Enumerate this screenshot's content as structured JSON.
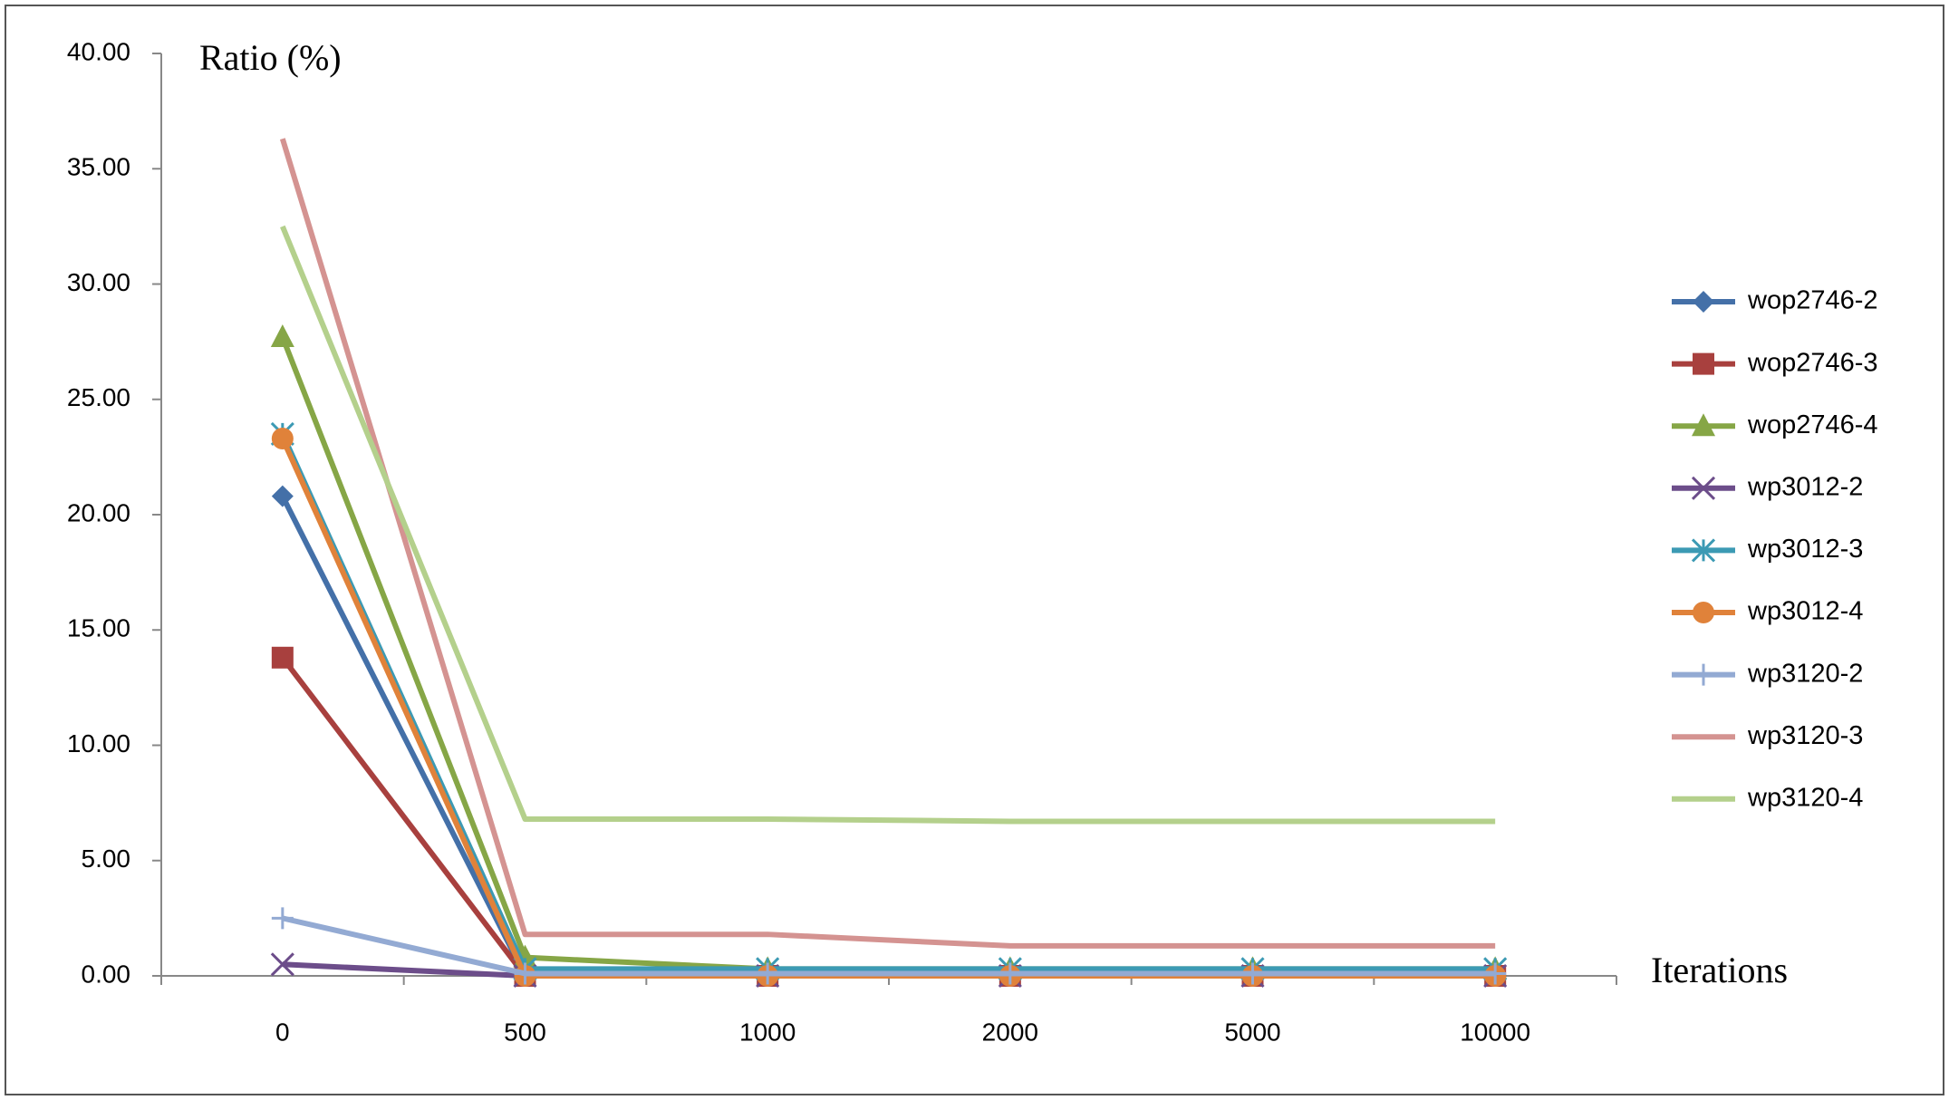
{
  "chart_data": {
    "type": "line",
    "y_label": "Ratio (%)",
    "x_label": "Iterations",
    "categories": [
      "0",
      "500",
      "1000",
      "2000",
      "5000",
      "10000"
    ],
    "ylim": [
      0,
      40
    ],
    "yticks": [
      {
        "value": 0,
        "label": "0.00"
      },
      {
        "value": 5,
        "label": "5.00"
      },
      {
        "value": 10,
        "label": "10.00"
      },
      {
        "value": 15,
        "label": "15.00"
      },
      {
        "value": 20,
        "label": "20.00"
      },
      {
        "value": 25,
        "label": "25.00"
      },
      {
        "value": 30,
        "label": "30.00"
      },
      {
        "value": 35,
        "label": "35.00"
      },
      {
        "value": 40,
        "label": "40.00"
      }
    ],
    "legend": "right",
    "series": [
      {
        "name": "wop2746-2",
        "color": "#4470a8",
        "marker": "diamond",
        "values": [
          20.8,
          0,
          0,
          0,
          0,
          0
        ]
      },
      {
        "name": "wop2746-3",
        "color": "#a8403e",
        "marker": "square",
        "values": [
          13.8,
          0,
          0,
          0,
          0,
          0
        ]
      },
      {
        "name": "wop2746-4",
        "color": "#86a646",
        "marker": "triangle",
        "values": [
          27.7,
          0.8,
          0.3,
          0.3,
          0.3,
          0.3
        ]
      },
      {
        "name": "wp3012-2",
        "color": "#6c4d8a",
        "marker": "x",
        "values": [
          0.5,
          0,
          0,
          0,
          0,
          0
        ]
      },
      {
        "name": "wp3012-3",
        "color": "#3c9ab4",
        "marker": "star",
        "values": [
          23.5,
          0.3,
          0.3,
          0.3,
          0.3,
          0.3
        ]
      },
      {
        "name": "wp3012-4",
        "color": "#e0823a",
        "marker": "circle",
        "values": [
          23.3,
          0,
          0,
          0,
          0,
          0
        ]
      },
      {
        "name": "wp3120-2",
        "color": "#93aad3",
        "marker": "plus",
        "values": [
          2.5,
          0.1,
          0.1,
          0.1,
          0.1,
          0.1
        ]
      },
      {
        "name": "wp3120-3",
        "color": "#d49391",
        "values": [
          36.3,
          1.8,
          1.8,
          1.3,
          1.3,
          1.3
        ]
      },
      {
        "name": "wp3120-4",
        "color": "#b4d08c",
        "values": [
          32.5,
          6.8,
          6.8,
          6.7,
          6.7,
          6.7
        ]
      }
    ]
  }
}
